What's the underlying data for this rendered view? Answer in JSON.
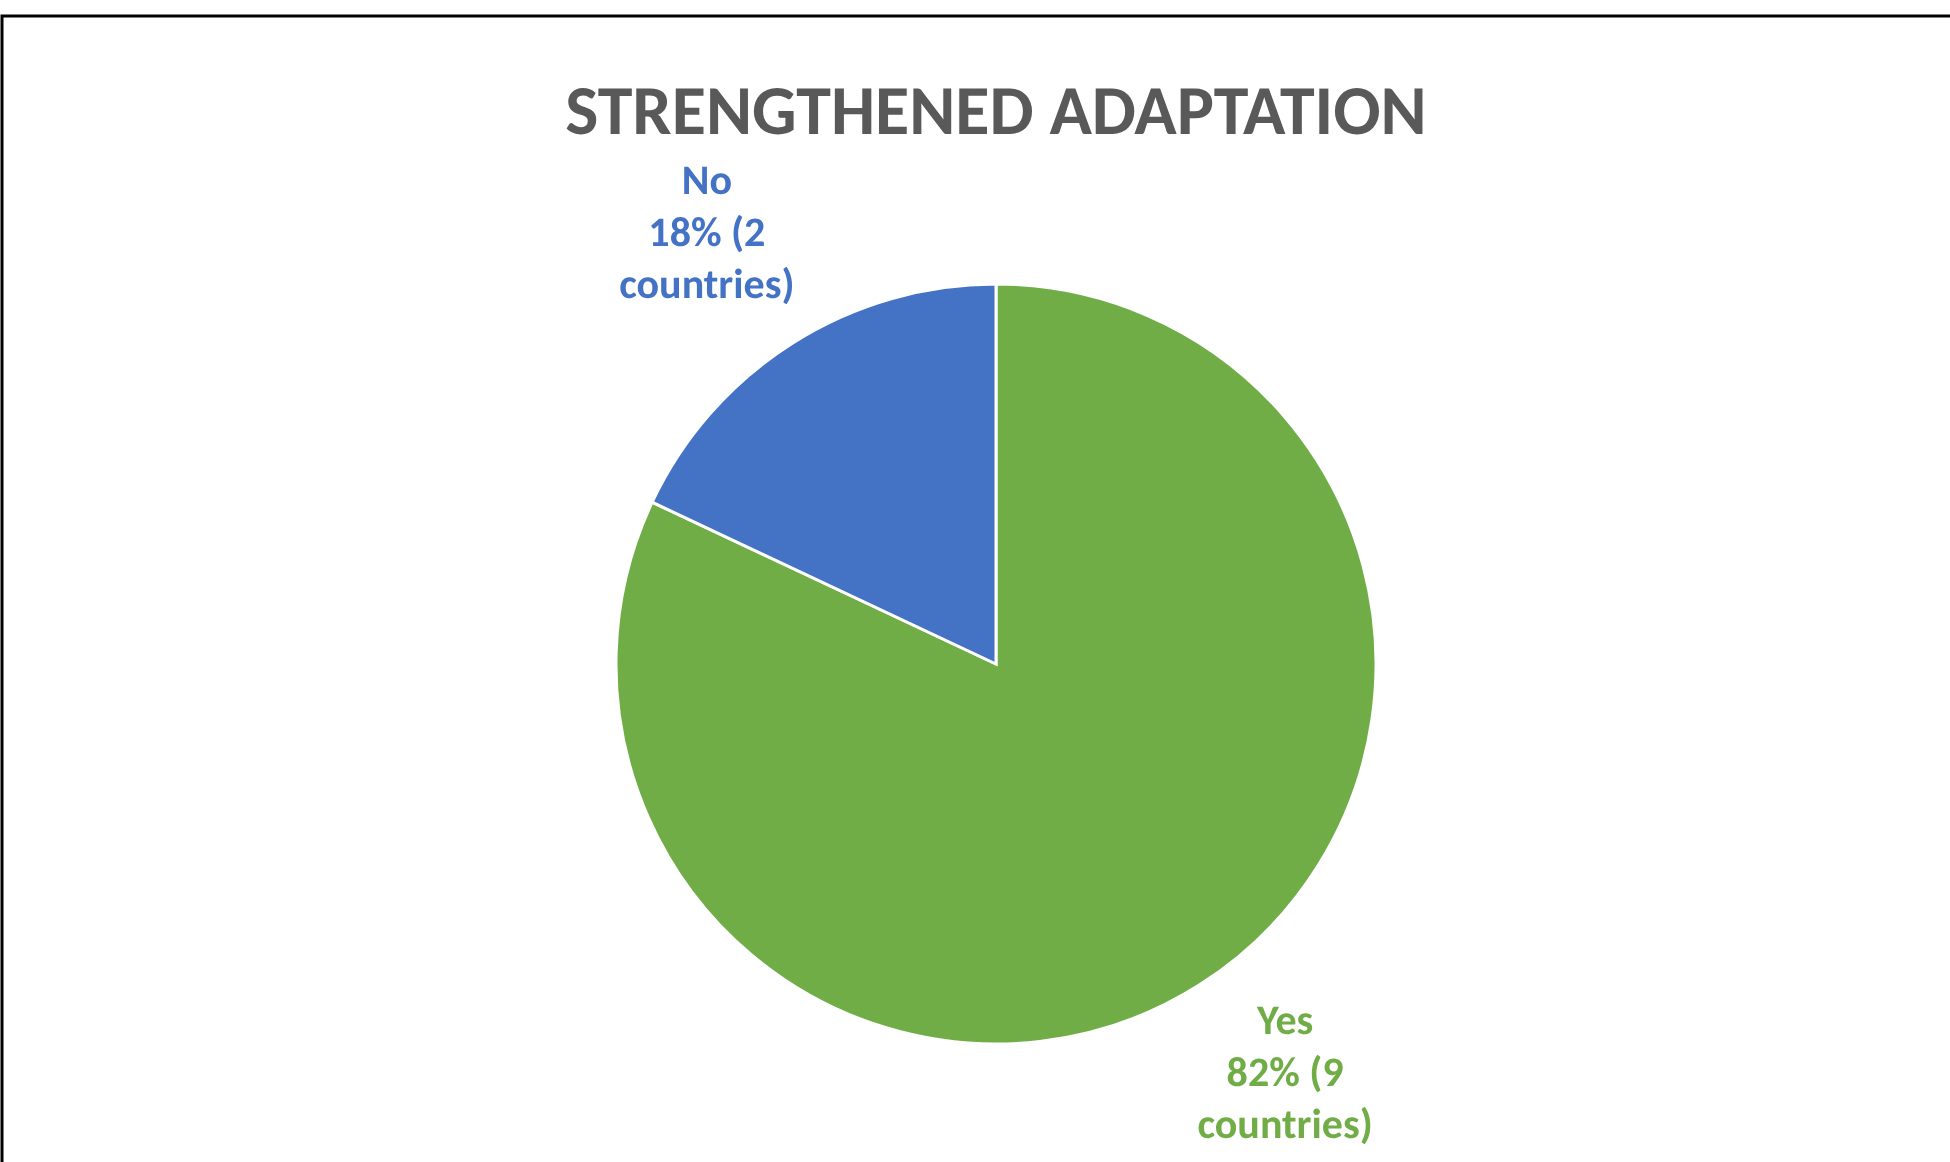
{
  "chart_data": {
    "type": "pie",
    "title": "STRENGTHENED ADAPTATION",
    "categories": [
      "Yes",
      "No"
    ],
    "values": [
      82,
      18
    ],
    "colors": [
      "#70ad47",
      "#4472c4"
    ],
    "value_labels": [
      "82% (9 countries)",
      "18% (2 countries)"
    ],
    "legend": false
  }
}
